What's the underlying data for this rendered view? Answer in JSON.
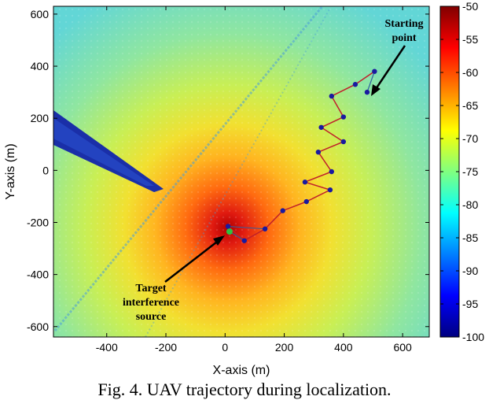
{
  "chart_data": {
    "type": "heatmap",
    "title": "",
    "xlabel": "X-axis (m)",
    "ylabel": "Y-axis (m)",
    "xlim": [
      -580,
      690
    ],
    "ylim": [
      -640,
      630
    ],
    "xticks": [
      -400,
      -200,
      0,
      200,
      400,
      600
    ],
    "yticks": [
      -600,
      -400,
      -200,
      0,
      200,
      400,
      600
    ],
    "colorbar": {
      "min": -100,
      "max": -50,
      "ticks": [
        -50,
        -55,
        -60,
        -65,
        -70,
        -75,
        -80,
        -85,
        -90,
        -95,
        -100
      ],
      "colormap": "jet"
    },
    "heatmap_description_values": {
      "peak_location": {
        "x": 10,
        "y": -220
      },
      "peak_value": -55
    },
    "trajectory": {
      "color": "#c0202a",
      "point_color": "#1a1aa0",
      "points": [
        {
          "x": 505,
          "y": 380
        },
        {
          "x": 440,
          "y": 330
        },
        {
          "x": 360,
          "y": 285
        },
        {
          "x": 400,
          "y": 205
        },
        {
          "x": 325,
          "y": 165
        },
        {
          "x": 400,
          "y": 110
        },
        {
          "x": 315,
          "y": 70
        },
        {
          "x": 360,
          "y": -5
        },
        {
          "x": 270,
          "y": -45
        },
        {
          "x": 355,
          "y": -75
        },
        {
          "x": 275,
          "y": -120
        },
        {
          "x": 195,
          "y": -155
        },
        {
          "x": 135,
          "y": -225
        },
        {
          "x": 65,
          "y": -270
        },
        {
          "x": 10,
          "y": -215
        }
      ],
      "start_marker": {
        "x": 480,
        "y": 300
      },
      "target_marker": {
        "x": 15,
        "y": -235
      }
    },
    "annotations": [
      {
        "lines": [
          "Starting",
          "point"
        ]
      },
      {
        "lines": [
          "Target",
          "interference",
          "source"
        ]
      }
    ]
  },
  "caption": "Fig. 4. UAV trajectory during localization."
}
